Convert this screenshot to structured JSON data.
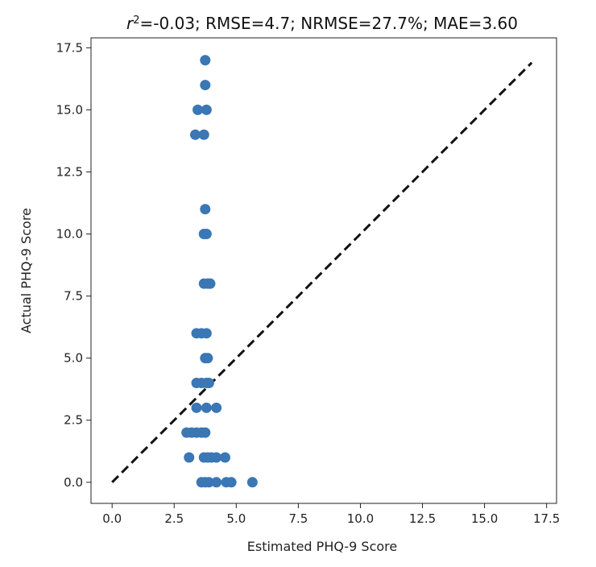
{
  "chart_data": {
    "type": "scatter",
    "title_parts": {
      "r_symbol": "r",
      "r_exponent": "2",
      "rest": "=-0.03; RMSE=4.7; NRMSE=27.7%; MAE=3.60"
    },
    "xlabel": "Estimated PHQ-9 Score",
    "ylabel": "Actual PHQ-9 Score",
    "xlim": [
      -0.85,
      17.9
    ],
    "ylim": [
      -0.85,
      17.9
    ],
    "xticks": [
      0.0,
      2.5,
      5.0,
      7.5,
      10.0,
      12.5,
      15.0,
      17.5
    ],
    "yticks": [
      0.0,
      2.5,
      5.0,
      7.5,
      10.0,
      12.5,
      15.0,
      17.5
    ],
    "xtick_labels": [
      "0.0",
      "2.5",
      "5.0",
      "7.5",
      "10.0",
      "12.5",
      "15.0",
      "17.5"
    ],
    "ytick_labels": [
      "0.0",
      "2.5",
      "5.0",
      "7.5",
      "10.0",
      "12.5",
      "15.0",
      "17.5"
    ],
    "grid": false,
    "point_color": "#3a77b4",
    "reference_line": {
      "x": [
        0,
        16.9
      ],
      "y": [
        0,
        16.9
      ],
      "style": "dashed",
      "color": "#111111"
    },
    "points": [
      {
        "x": 3.75,
        "y": 17
      },
      {
        "x": 3.75,
        "y": 16
      },
      {
        "x": 3.45,
        "y": 15
      },
      {
        "x": 3.8,
        "y": 15
      },
      {
        "x": 3.35,
        "y": 14
      },
      {
        "x": 3.7,
        "y": 14
      },
      {
        "x": 3.75,
        "y": 11
      },
      {
        "x": 3.7,
        "y": 10
      },
      {
        "x": 3.8,
        "y": 10
      },
      {
        "x": 3.7,
        "y": 8
      },
      {
        "x": 3.85,
        "y": 8
      },
      {
        "x": 3.95,
        "y": 8
      },
      {
        "x": 3.4,
        "y": 6
      },
      {
        "x": 3.6,
        "y": 6
      },
      {
        "x": 3.8,
        "y": 6
      },
      {
        "x": 3.75,
        "y": 5
      },
      {
        "x": 3.85,
        "y": 5
      },
      {
        "x": 3.4,
        "y": 4
      },
      {
        "x": 3.6,
        "y": 4
      },
      {
        "x": 3.8,
        "y": 4
      },
      {
        "x": 3.9,
        "y": 4
      },
      {
        "x": 3.4,
        "y": 3
      },
      {
        "x": 3.8,
        "y": 3
      },
      {
        "x": 4.2,
        "y": 3
      },
      {
        "x": 3.0,
        "y": 2
      },
      {
        "x": 3.2,
        "y": 2
      },
      {
        "x": 3.4,
        "y": 2
      },
      {
        "x": 3.6,
        "y": 2
      },
      {
        "x": 3.75,
        "y": 2
      },
      {
        "x": 3.1,
        "y": 1
      },
      {
        "x": 3.7,
        "y": 1
      },
      {
        "x": 3.85,
        "y": 1
      },
      {
        "x": 4.0,
        "y": 1
      },
      {
        "x": 4.2,
        "y": 1
      },
      {
        "x": 4.55,
        "y": 1
      },
      {
        "x": 3.6,
        "y": 0
      },
      {
        "x": 3.75,
        "y": 0
      },
      {
        "x": 3.9,
        "y": 0
      },
      {
        "x": 4.2,
        "y": 0
      },
      {
        "x": 4.6,
        "y": 0
      },
      {
        "x": 4.8,
        "y": 0
      },
      {
        "x": 5.65,
        "y": 0
      }
    ]
  }
}
